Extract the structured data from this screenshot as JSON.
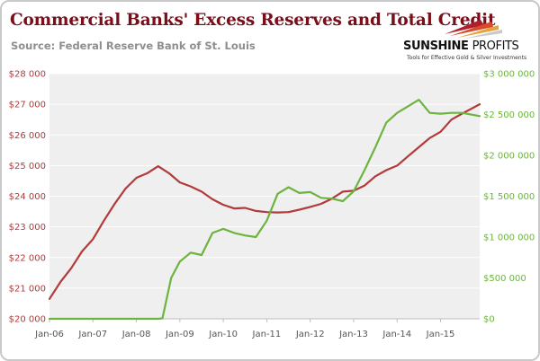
{
  "title": "Commercial Banks' Excess Reserves and Total Credit",
  "subtitle": "Source: Federal Reserve Bank of St. Louis",
  "logo": {
    "name_bold": "SUNSHINE",
    "name_light": "PROFITS",
    "tagline": "Tools for Effective Gold & Silver Investments"
  },
  "colors": {
    "title": "#7a0f1c",
    "total_credit": "#b23a3a",
    "excess_reserves": "#6db33f",
    "plot_bg": "#efefef",
    "grid": "#ffffff"
  },
  "chart_data": {
    "type": "line",
    "title": "Commercial Banks' Excess Reserves and Total Credit",
    "xlabel": "",
    "ylabel": "",
    "x_ticks": [
      "Jan-06",
      "Jan-07",
      "Jan-08",
      "Jan-09",
      "Jan-10",
      "Jan-11",
      "Jan-12",
      "Jan-13",
      "Jan-14",
      "Jan-15"
    ],
    "x_range": [
      2006.0,
      2015.9
    ],
    "y_left": {
      "ylim": [
        20000,
        28000
      ],
      "tick_labels": [
        "$20 000",
        "$21 000",
        "$22 000",
        "$23 000",
        "$24 000",
        "$25 000",
        "$26 000",
        "$27 000",
        "$28 000"
      ]
    },
    "y_right": {
      "ylim": [
        0,
        3000000
      ],
      "tick_labels": [
        "$0",
        "$500 000",
        "$1 000 000",
        "$1 500 000",
        "$2 000 000",
        "$2 500 000",
        "$3 000 000"
      ]
    },
    "grid": "horizontal",
    "series": [
      {
        "axis": "left",
        "color": "#b23a3a",
        "x": [
          2006.0,
          2006.25,
          2006.5,
          2006.75,
          2007.0,
          2007.25,
          2007.5,
          2007.75,
          2008.0,
          2008.25,
          2008.5,
          2008.75,
          2009.0,
          2009.25,
          2009.5,
          2009.75,
          2010.0,
          2010.25,
          2010.5,
          2010.75,
          2011.0,
          2011.25,
          2011.5,
          2011.75,
          2012.0,
          2012.25,
          2012.5,
          2012.75,
          2013.0,
          2013.25,
          2013.5,
          2013.75,
          2014.0,
          2014.25,
          2014.5,
          2014.75,
          2015.0,
          2015.25,
          2015.5,
          2015.9
        ],
        "values": [
          20650,
          21200,
          21650,
          22200,
          22600,
          23200,
          23750,
          24250,
          24600,
          24750,
          24980,
          24750,
          24450,
          24320,
          24150,
          23900,
          23720,
          23600,
          23620,
          23520,
          23480,
          23470,
          23480,
          23560,
          23650,
          23750,
          23920,
          24150,
          24180,
          24350,
          24650,
          24850,
          25000,
          25300,
          25600,
          25900,
          26100,
          26500,
          26700,
          27000
        ]
      },
      {
        "axis": "right",
        "color": "#6db33f",
        "x": [
          2006.0,
          2006.5,
          2007.0,
          2007.5,
          2008.0,
          2008.5,
          2008.6,
          2008.8,
          2009.0,
          2009.25,
          2009.5,
          2009.75,
          2010.0,
          2010.25,
          2010.5,
          2010.75,
          2011.0,
          2011.25,
          2011.5,
          2011.75,
          2012.0,
          2012.25,
          2012.5,
          2012.75,
          2013.0,
          2013.25,
          2013.5,
          2013.75,
          2014.0,
          2014.25,
          2014.5,
          2014.75,
          2015.0,
          2015.25,
          2015.5,
          2015.9
        ],
        "values": [
          0,
          0,
          0,
          0,
          0,
          0,
          5000,
          500000,
          700000,
          810000,
          780000,
          1050000,
          1100000,
          1050000,
          1020000,
          1000000,
          1200000,
          1530000,
          1610000,
          1540000,
          1550000,
          1480000,
          1470000,
          1440000,
          1560000,
          1820000,
          2100000,
          2400000,
          2520000,
          2600000,
          2680000,
          2520000,
          2510000,
          2520000,
          2520000,
          2480000
        ]
      }
    ]
  }
}
